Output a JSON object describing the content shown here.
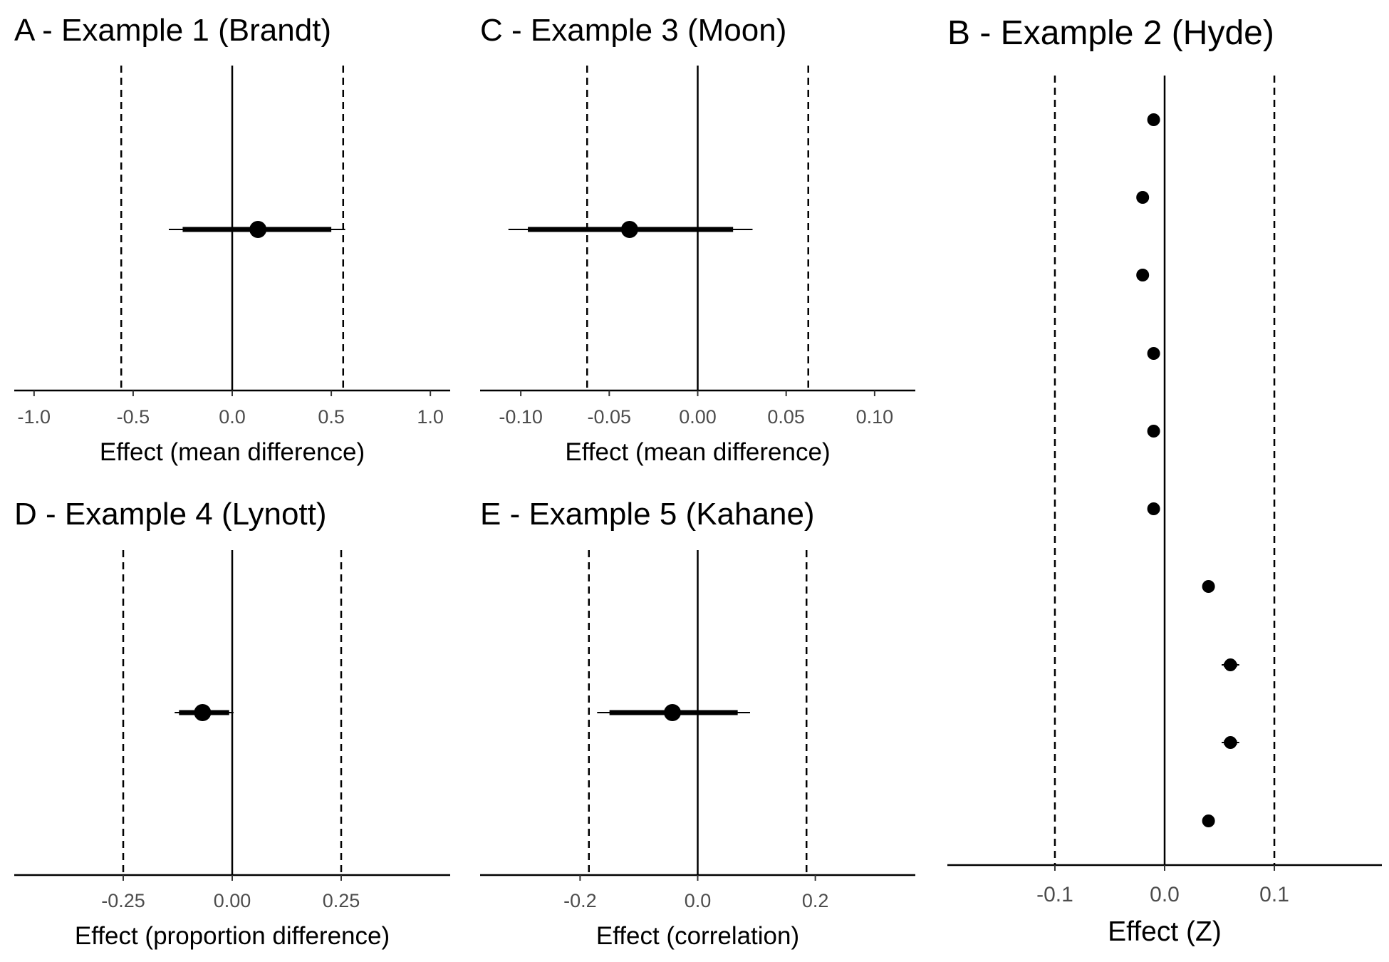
{
  "chart_data": [
    {
      "id": "A",
      "type": "forest",
      "title": "A - Example 1 (Brandt)",
      "xlabel": "Effect (mean difference)",
      "xlim": [
        -1.1,
        1.1
      ],
      "ticks": [
        -1.0,
        -0.5,
        0.0,
        0.5,
        1.0
      ],
      "tick_labels": [
        "-1.0",
        "-0.5",
        "0.0",
        "0.5",
        "1.0"
      ],
      "equivalence_bounds": [
        -0.56,
        0.56
      ],
      "points": [
        {
          "estimate": 0.13,
          "ci90": [
            -0.25,
            0.5
          ],
          "ci95": [
            -0.32,
            0.57
          ]
        }
      ]
    },
    {
      "id": "C",
      "type": "forest",
      "title": "C - Example 3 (Moon)",
      "xlabel": "Effect (mean difference)",
      "xlim": [
        -0.123,
        0.123
      ],
      "ticks": [
        -0.1,
        -0.05,
        0.0,
        0.05,
        0.1
      ],
      "tick_labels": [
        "-0.10",
        "-0.05",
        "0.00",
        "0.05",
        "0.10"
      ],
      "equivalence_bounds": [
        -0.0625,
        0.0625
      ],
      "points": [
        {
          "estimate": -0.0385,
          "ci90": [
            -0.096,
            0.02
          ],
          "ci95": [
            -0.107,
            0.031
          ]
        }
      ]
    },
    {
      "id": "D",
      "type": "forest",
      "title": "D - Example 4 (Lynott)",
      "xlabel": "Effect (proportion difference)",
      "xlim": [
        -0.5,
        0.5
      ],
      "ticks": [
        -0.25,
        0.0,
        0.25
      ],
      "tick_labels": [
        "-0.25",
        "0.00",
        "0.25"
      ],
      "equivalence_bounds": [
        -0.25,
        0.25
      ],
      "points": [
        {
          "estimate": -0.068,
          "ci90": [
            -0.122,
            -0.007
          ],
          "ci95": [
            -0.132,
            0.003
          ]
        }
      ]
    },
    {
      "id": "E",
      "type": "forest",
      "title": "E - Example 5 (Kahane)",
      "xlabel": "Effect (correlation)",
      "xlim": [
        -0.37,
        0.37
      ],
      "ticks": [
        -0.2,
        0.0,
        0.2
      ],
      "tick_labels": [
        "-0.2",
        "0.0",
        "0.2"
      ],
      "equivalence_bounds": [
        -0.185,
        0.185
      ],
      "points": [
        {
          "estimate": -0.043,
          "ci90": [
            -0.15,
            0.068
          ],
          "ci95": [
            -0.171,
            0.089
          ]
        }
      ]
    },
    {
      "id": "B",
      "type": "forest",
      "title": "B - Example 2 (Hyde)",
      "xlabel": "Effect (Z)",
      "xlim": [
        -0.198,
        0.198
      ],
      "ticks": [
        -0.1,
        0.0,
        0.1
      ],
      "tick_labels": [
        "-0.1",
        "0.0",
        "0.1"
      ],
      "equivalence_bounds": [
        -0.1,
        0.1
      ],
      "points": [
        {
          "estimate": -0.01,
          "ci90": [
            -0.014,
            -0.006
          ],
          "ci95": [
            -0.015,
            -0.005
          ]
        },
        {
          "estimate": -0.02,
          "ci90": [
            -0.024,
            -0.016
          ],
          "ci95": [
            -0.025,
            -0.015
          ]
        },
        {
          "estimate": -0.02,
          "ci90": [
            -0.024,
            -0.016
          ],
          "ci95": [
            -0.025,
            -0.015
          ]
        },
        {
          "estimate": -0.01,
          "ci90": [
            -0.014,
            -0.006
          ],
          "ci95": [
            -0.015,
            -0.005
          ]
        },
        {
          "estimate": -0.01,
          "ci90": [
            -0.014,
            -0.006
          ],
          "ci95": [
            -0.015,
            -0.005
          ]
        },
        {
          "estimate": -0.01,
          "ci90": [
            -0.014,
            -0.006
          ],
          "ci95": [
            -0.015,
            -0.005
          ]
        },
        {
          "estimate": 0.04,
          "ci90": [
            0.036,
            0.044
          ],
          "ci95": [
            0.035,
            0.045
          ]
        },
        {
          "estimate": 0.06,
          "ci90": [
            0.054,
            0.066
          ],
          "ci95": [
            0.052,
            0.068
          ]
        },
        {
          "estimate": 0.06,
          "ci90": [
            0.054,
            0.066
          ],
          "ci95": [
            0.052,
            0.068
          ]
        },
        {
          "estimate": 0.04,
          "ci90": [
            0.036,
            0.044
          ],
          "ci95": [
            0.035,
            0.045
          ]
        }
      ]
    }
  ]
}
